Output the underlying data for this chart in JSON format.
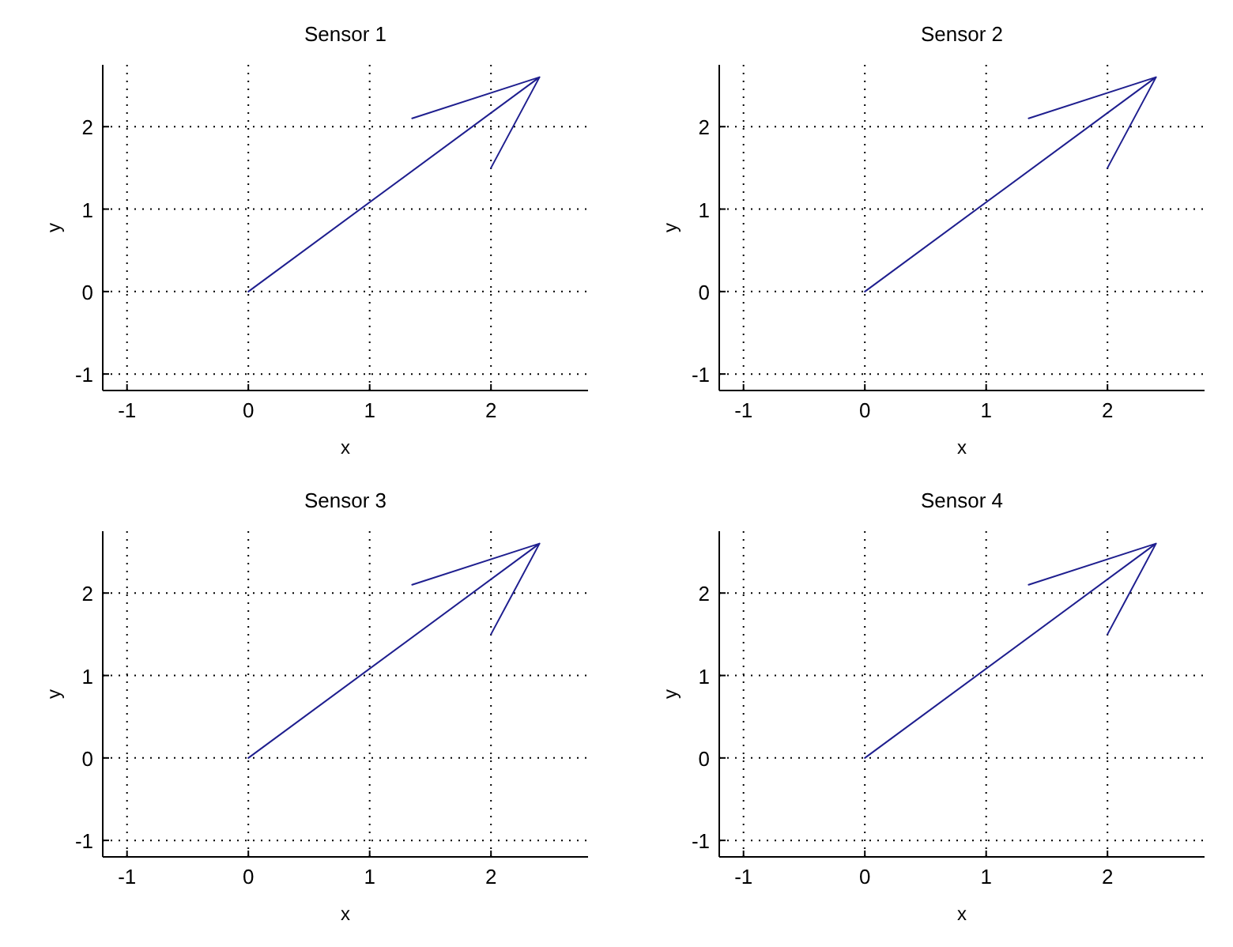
{
  "chart_data": [
    {
      "type": "line",
      "title": "Sensor 1",
      "xlabel": "x",
      "ylabel": "y",
      "xlim": [
        -1.2,
        2.8
      ],
      "ylim": [
        -1.2,
        2.75
      ],
      "xticks": [
        -1,
        0,
        1,
        2
      ],
      "yticks": [
        -1,
        0,
        1,
        2
      ],
      "grid": true,
      "line_style": "solid",
      "marker": "none",
      "series": [
        {
          "color": "#1f1f8f",
          "x": [
            0,
            2.4,
            1.35,
            2.4,
            2.0
          ],
          "values": [
            0,
            2.6,
            2.1,
            2.6,
            1.5
          ]
        }
      ]
    },
    {
      "type": "line",
      "title": "Sensor 2",
      "xlabel": "x",
      "ylabel": "y",
      "xlim": [
        -1.2,
        2.8
      ],
      "ylim": [
        -1.2,
        2.75
      ],
      "xticks": [
        -1,
        0,
        1,
        2
      ],
      "yticks": [
        -1,
        0,
        1,
        2
      ],
      "grid": true,
      "line_style": "solid",
      "marker": "none",
      "series": [
        {
          "color": "#1f1f8f",
          "x": [
            0,
            2.4,
            1.35,
            2.4,
            2.0
          ],
          "values": [
            0,
            2.6,
            2.1,
            2.6,
            1.5
          ]
        }
      ]
    },
    {
      "type": "line",
      "title": "Sensor 3",
      "xlabel": "x",
      "ylabel": "y",
      "xlim": [
        -1.2,
        2.8
      ],
      "ylim": [
        -1.2,
        2.75
      ],
      "xticks": [
        -1,
        0,
        1,
        2
      ],
      "yticks": [
        -1,
        0,
        1,
        2
      ],
      "grid": true,
      "line_style": "solid",
      "marker": "none",
      "series": [
        {
          "color": "#1f1f8f",
          "x": [
            0,
            2.4,
            1.35,
            2.4,
            2.0
          ],
          "values": [
            0,
            2.6,
            2.1,
            2.6,
            1.5
          ]
        }
      ]
    },
    {
      "type": "line",
      "title": "Sensor 4",
      "xlabel": "x",
      "ylabel": "y",
      "xlim": [
        -1.2,
        2.8
      ],
      "ylim": [
        -1.2,
        2.75
      ],
      "xticks": [
        -1,
        0,
        1,
        2
      ],
      "yticks": [
        -1,
        0,
        1,
        2
      ],
      "grid": true,
      "line_style": "solid",
      "marker": "none",
      "series": [
        {
          "color": "#1f1f8f",
          "x": [
            0,
            2.4,
            1.35,
            2.4,
            2.0
          ],
          "values": [
            0,
            2.6,
            2.1,
            2.6,
            1.5
          ]
        }
      ]
    }
  ]
}
